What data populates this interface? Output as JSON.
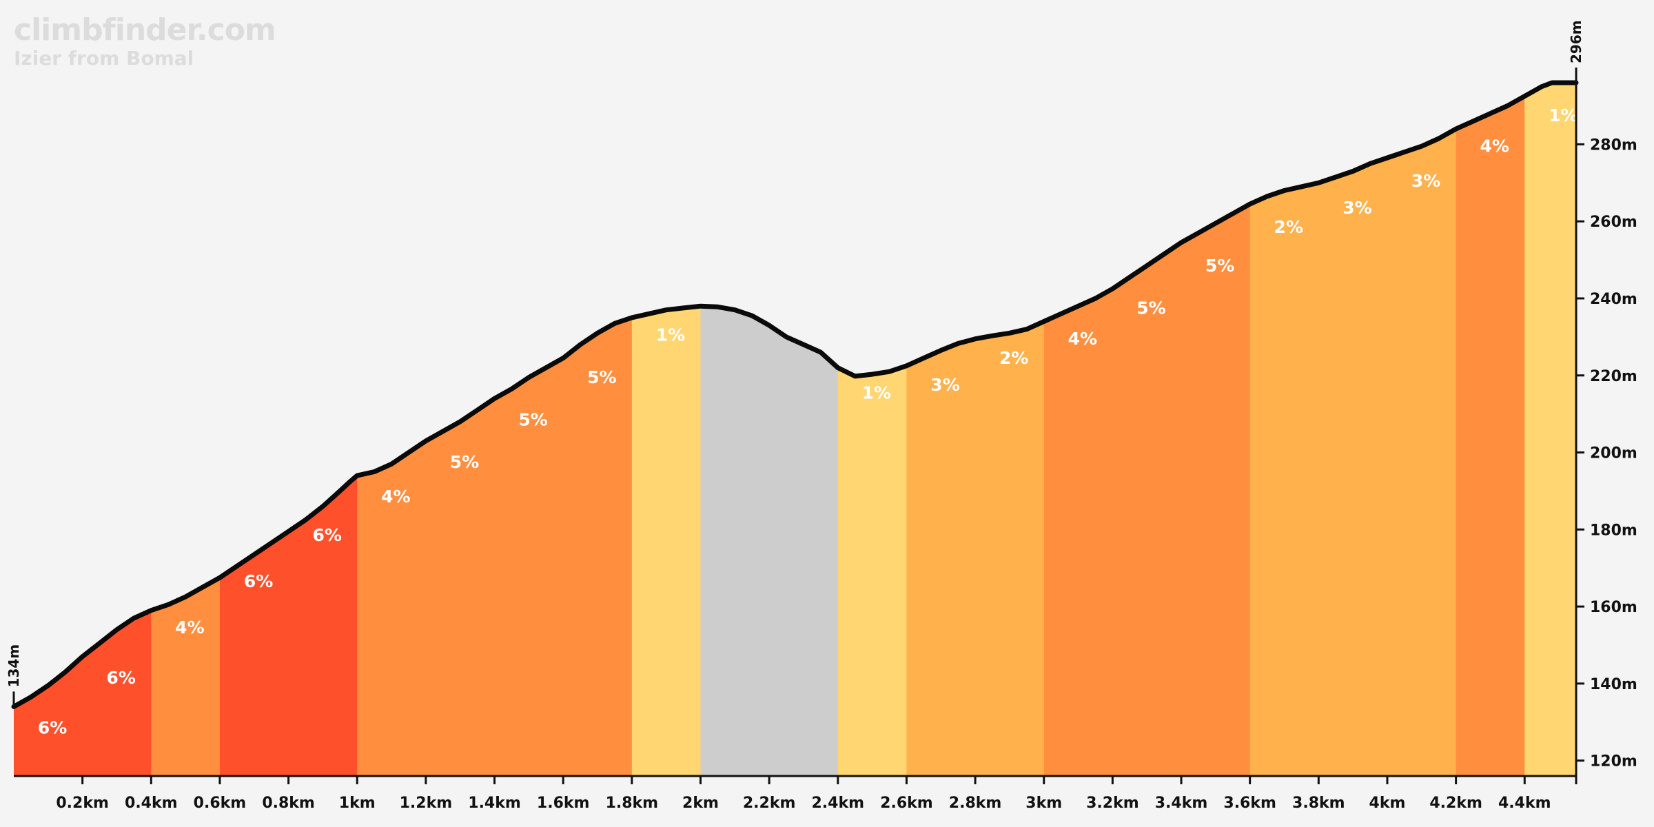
{
  "brand": "climbfinder.com",
  "subtitle": "Izier from Bomal",
  "chart_data": {
    "type": "area",
    "x_unit": "km",
    "y_unit": "m",
    "xlim": [
      0,
      4.55
    ],
    "ylim": [
      116,
      296
    ],
    "x_ticks": [
      {
        "v": 0.2,
        "label": "0.2km"
      },
      {
        "v": 0.4,
        "label": "0.4km"
      },
      {
        "v": 0.6,
        "label": "0.6km"
      },
      {
        "v": 0.8,
        "label": "0.8km"
      },
      {
        "v": 1.0,
        "label": "1km"
      },
      {
        "v": 1.2,
        "label": "1.2km"
      },
      {
        "v": 1.4,
        "label": "1.4km"
      },
      {
        "v": 1.6,
        "label": "1.6km"
      },
      {
        "v": 1.8,
        "label": "1.8km"
      },
      {
        "v": 2.0,
        "label": "2km"
      },
      {
        "v": 2.2,
        "label": "2.2km"
      },
      {
        "v": 2.4,
        "label": "2.4km"
      },
      {
        "v": 2.6,
        "label": "2.6km"
      },
      {
        "v": 2.8,
        "label": "2.8km"
      },
      {
        "v": 3.0,
        "label": "3km"
      },
      {
        "v": 3.2,
        "label": "3.2km"
      },
      {
        "v": 3.4,
        "label": "3.4km"
      },
      {
        "v": 3.6,
        "label": "3.6km"
      },
      {
        "v": 3.8,
        "label": "3.8km"
      },
      {
        "v": 4.0,
        "label": "4km"
      },
      {
        "v": 4.2,
        "label": "4.2km"
      },
      {
        "v": 4.4,
        "label": "4.4km"
      }
    ],
    "y_ticks": [
      {
        "v": 120,
        "label": "120m"
      },
      {
        "v": 140,
        "label": "140m"
      },
      {
        "v": 160,
        "label": "160m"
      },
      {
        "v": 180,
        "label": "180m"
      },
      {
        "v": 200,
        "label": "200m"
      },
      {
        "v": 220,
        "label": "220m"
      },
      {
        "v": 240,
        "label": "240m"
      },
      {
        "v": 260,
        "label": "260m"
      },
      {
        "v": 280,
        "label": "280m"
      }
    ],
    "start_label": "134m",
    "end_label": "296m",
    "profile": [
      [
        0.0,
        134
      ],
      [
        0.05,
        136.5
      ],
      [
        0.1,
        139.5
      ],
      [
        0.15,
        143
      ],
      [
        0.2,
        147
      ],
      [
        0.25,
        150.5
      ],
      [
        0.3,
        154
      ],
      [
        0.35,
        157
      ],
      [
        0.4,
        159
      ],
      [
        0.45,
        160.5
      ],
      [
        0.5,
        162.5
      ],
      [
        0.55,
        165
      ],
      [
        0.6,
        167.5
      ],
      [
        0.65,
        170.5
      ],
      [
        0.7,
        173.5
      ],
      [
        0.75,
        176.5
      ],
      [
        0.8,
        179.5
      ],
      [
        0.85,
        182.5
      ],
      [
        0.9,
        186
      ],
      [
        0.95,
        190
      ],
      [
        0.98,
        192.5
      ],
      [
        1.0,
        194
      ],
      [
        1.05,
        195
      ],
      [
        1.1,
        197
      ],
      [
        1.15,
        200
      ],
      [
        1.2,
        203
      ],
      [
        1.25,
        205.5
      ],
      [
        1.3,
        208
      ],
      [
        1.35,
        211
      ],
      [
        1.4,
        214
      ],
      [
        1.45,
        216.5
      ],
      [
        1.5,
        219.5
      ],
      [
        1.55,
        222
      ],
      [
        1.6,
        224.5
      ],
      [
        1.65,
        228
      ],
      [
        1.7,
        231
      ],
      [
        1.75,
        233.5
      ],
      [
        1.8,
        235
      ],
      [
        1.85,
        236
      ],
      [
        1.9,
        237
      ],
      [
        1.95,
        237.5
      ],
      [
        2.0,
        238
      ],
      [
        2.05,
        237.8
      ],
      [
        2.1,
        237
      ],
      [
        2.15,
        235.5
      ],
      [
        2.2,
        233
      ],
      [
        2.25,
        230
      ],
      [
        2.3,
        228
      ],
      [
        2.35,
        226
      ],
      [
        2.4,
        222
      ],
      [
        2.45,
        219.8
      ],
      [
        2.5,
        220.3
      ],
      [
        2.55,
        221
      ],
      [
        2.6,
        222.5
      ],
      [
        2.65,
        224.5
      ],
      [
        2.7,
        226.5
      ],
      [
        2.75,
        228.3
      ],
      [
        2.8,
        229.5
      ],
      [
        2.85,
        230.3
      ],
      [
        2.9,
        231
      ],
      [
        2.95,
        232
      ],
      [
        3.0,
        234
      ],
      [
        3.05,
        236
      ],
      [
        3.1,
        238
      ],
      [
        3.15,
        240
      ],
      [
        3.2,
        242.5
      ],
      [
        3.25,
        245.5
      ],
      [
        3.3,
        248.5
      ],
      [
        3.35,
        251.5
      ],
      [
        3.4,
        254.5
      ],
      [
        3.45,
        257
      ],
      [
        3.5,
        259.5
      ],
      [
        3.55,
        262
      ],
      [
        3.6,
        264.5
      ],
      [
        3.65,
        266.5
      ],
      [
        3.7,
        268
      ],
      [
        3.75,
        269
      ],
      [
        3.8,
        270
      ],
      [
        3.85,
        271.5
      ],
      [
        3.9,
        273
      ],
      [
        3.95,
        275
      ],
      [
        4.0,
        276.5
      ],
      [
        4.05,
        278
      ],
      [
        4.1,
        279.5
      ],
      [
        4.15,
        281.5
      ],
      [
        4.2,
        284
      ],
      [
        4.25,
        286
      ],
      [
        4.3,
        288
      ],
      [
        4.35,
        290
      ],
      [
        4.4,
        292.5
      ],
      [
        4.45,
        295
      ],
      [
        4.48,
        296
      ],
      [
        4.55,
        296
      ]
    ],
    "segments": [
      {
        "x0": 0.0,
        "x1": 0.4,
        "grade": "6%",
        "color": "#ff502c"
      },
      {
        "x0": 0.4,
        "x1": 0.6,
        "grade": "4%",
        "color": "#ff8f3f"
      },
      {
        "x0": 0.6,
        "x1": 1.0,
        "grade": "6%",
        "color": "#ff502c"
      },
      {
        "x0": 1.0,
        "x1": 1.8,
        "grade": "5%",
        "color": "#ff8f3f"
      },
      {
        "x0": 1.8,
        "x1": 2.0,
        "grade": "1%",
        "color": "#ffd672"
      },
      {
        "x0": 2.0,
        "x1": 2.4,
        "grade": "",
        "color": "#cdcdcd"
      },
      {
        "x0": 2.4,
        "x1": 2.6,
        "grade": "1%",
        "color": "#ffd672"
      },
      {
        "x0": 2.6,
        "x1": 3.0,
        "grade": "3%",
        "color": "#ffb14b"
      },
      {
        "x0": 3.0,
        "x1": 3.6,
        "grade": "5%",
        "color": "#ff8f3f"
      },
      {
        "x0": 3.6,
        "x1": 4.2,
        "grade": "3%",
        "color": "#ffb14b"
      },
      {
        "x0": 4.2,
        "x1": 4.4,
        "grade": "4%",
        "color": "#ff8f3f"
      },
      {
        "x0": 4.4,
        "x1": 4.55,
        "grade": "1%",
        "color": "#ffd672"
      }
    ],
    "grade_labels": [
      {
        "x": 0.07,
        "y": 127,
        "text": "6%"
      },
      {
        "x": 0.27,
        "y": 140,
        "text": "6%"
      },
      {
        "x": 0.47,
        "y": 153,
        "text": "4%"
      },
      {
        "x": 0.67,
        "y": 165,
        "text": "6%"
      },
      {
        "x": 0.87,
        "y": 177,
        "text": "6%"
      },
      {
        "x": 1.07,
        "y": 187,
        "text": "4%"
      },
      {
        "x": 1.27,
        "y": 196,
        "text": "5%"
      },
      {
        "x": 1.47,
        "y": 207,
        "text": "5%"
      },
      {
        "x": 1.67,
        "y": 218,
        "text": "5%"
      },
      {
        "x": 1.87,
        "y": 229,
        "text": "1%"
      },
      {
        "x": 2.47,
        "y": 214,
        "text": "1%"
      },
      {
        "x": 2.67,
        "y": 216,
        "text": "3%"
      },
      {
        "x": 2.87,
        "y": 223,
        "text": "2%"
      },
      {
        "x": 3.07,
        "y": 228,
        "text": "4%"
      },
      {
        "x": 3.27,
        "y": 236,
        "text": "5%"
      },
      {
        "x": 3.47,
        "y": 247,
        "text": "5%"
      },
      {
        "x": 3.67,
        "y": 257,
        "text": "2%"
      },
      {
        "x": 3.87,
        "y": 262,
        "text": "3%"
      },
      {
        "x": 4.07,
        "y": 269,
        "text": "3%"
      },
      {
        "x": 4.27,
        "y": 278,
        "text": "4%"
      },
      {
        "x": 4.47,
        "y": 286,
        "text": "1%"
      }
    ],
    "colors": {
      "line": "#0a0a0a",
      "axis": "#111111",
      "background": "#f4f4f4"
    }
  }
}
